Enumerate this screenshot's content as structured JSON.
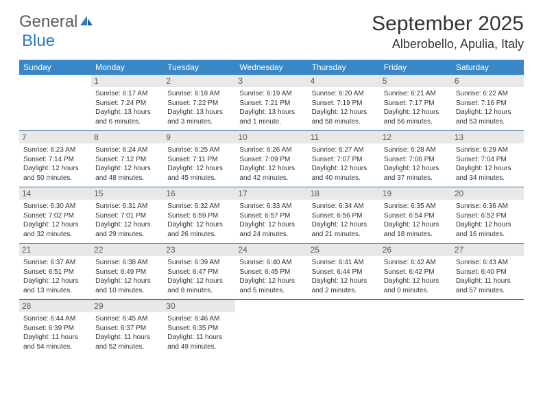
{
  "logo": {
    "text1": "General",
    "text2": "Blue"
  },
  "title": "September 2025",
  "location": "Alberobello, Apulia, Italy",
  "colors": {
    "header_bg": "#3a87c8",
    "header_text": "#ffffff",
    "daynum_bg": "#e8e8e8",
    "daynum_text": "#5a5a5a",
    "row_border": "#2b6fa8",
    "logo_gray": "#5a5a5a",
    "logo_blue": "#2b7bbf"
  },
  "daysOfWeek": [
    "Sunday",
    "Monday",
    "Tuesday",
    "Wednesday",
    "Thursday",
    "Friday",
    "Saturday"
  ],
  "weeks": [
    [
      null,
      {
        "n": "1",
        "sr": "6:17 AM",
        "ss": "7:24 PM",
        "dl": "13 hours and 6 minutes."
      },
      {
        "n": "2",
        "sr": "6:18 AM",
        "ss": "7:22 PM",
        "dl": "13 hours and 3 minutes."
      },
      {
        "n": "3",
        "sr": "6:19 AM",
        "ss": "7:21 PM",
        "dl": "13 hours and 1 minute."
      },
      {
        "n": "4",
        "sr": "6:20 AM",
        "ss": "7:19 PM",
        "dl": "12 hours and 58 minutes."
      },
      {
        "n": "5",
        "sr": "6:21 AM",
        "ss": "7:17 PM",
        "dl": "12 hours and 56 minutes."
      },
      {
        "n": "6",
        "sr": "6:22 AM",
        "ss": "7:16 PM",
        "dl": "12 hours and 53 minutes."
      }
    ],
    [
      {
        "n": "7",
        "sr": "6:23 AM",
        "ss": "7:14 PM",
        "dl": "12 hours and 50 minutes."
      },
      {
        "n": "8",
        "sr": "6:24 AM",
        "ss": "7:12 PM",
        "dl": "12 hours and 48 minutes."
      },
      {
        "n": "9",
        "sr": "6:25 AM",
        "ss": "7:11 PM",
        "dl": "12 hours and 45 minutes."
      },
      {
        "n": "10",
        "sr": "6:26 AM",
        "ss": "7:09 PM",
        "dl": "12 hours and 42 minutes."
      },
      {
        "n": "11",
        "sr": "6:27 AM",
        "ss": "7:07 PM",
        "dl": "12 hours and 40 minutes."
      },
      {
        "n": "12",
        "sr": "6:28 AM",
        "ss": "7:06 PM",
        "dl": "12 hours and 37 minutes."
      },
      {
        "n": "13",
        "sr": "6:29 AM",
        "ss": "7:04 PM",
        "dl": "12 hours and 34 minutes."
      }
    ],
    [
      {
        "n": "14",
        "sr": "6:30 AM",
        "ss": "7:02 PM",
        "dl": "12 hours and 32 minutes."
      },
      {
        "n": "15",
        "sr": "6:31 AM",
        "ss": "7:01 PM",
        "dl": "12 hours and 29 minutes."
      },
      {
        "n": "16",
        "sr": "6:32 AM",
        "ss": "6:59 PM",
        "dl": "12 hours and 26 minutes."
      },
      {
        "n": "17",
        "sr": "6:33 AM",
        "ss": "6:57 PM",
        "dl": "12 hours and 24 minutes."
      },
      {
        "n": "18",
        "sr": "6:34 AM",
        "ss": "6:56 PM",
        "dl": "12 hours and 21 minutes."
      },
      {
        "n": "19",
        "sr": "6:35 AM",
        "ss": "6:54 PM",
        "dl": "12 hours and 18 minutes."
      },
      {
        "n": "20",
        "sr": "6:36 AM",
        "ss": "6:52 PM",
        "dl": "12 hours and 16 minutes."
      }
    ],
    [
      {
        "n": "21",
        "sr": "6:37 AM",
        "ss": "6:51 PM",
        "dl": "12 hours and 13 minutes."
      },
      {
        "n": "22",
        "sr": "6:38 AM",
        "ss": "6:49 PM",
        "dl": "12 hours and 10 minutes."
      },
      {
        "n": "23",
        "sr": "6:39 AM",
        "ss": "6:47 PM",
        "dl": "12 hours and 8 minutes."
      },
      {
        "n": "24",
        "sr": "6:40 AM",
        "ss": "6:45 PM",
        "dl": "12 hours and 5 minutes."
      },
      {
        "n": "25",
        "sr": "6:41 AM",
        "ss": "6:44 PM",
        "dl": "12 hours and 2 minutes."
      },
      {
        "n": "26",
        "sr": "6:42 AM",
        "ss": "6:42 PM",
        "dl": "12 hours and 0 minutes."
      },
      {
        "n": "27",
        "sr": "6:43 AM",
        "ss": "6:40 PM",
        "dl": "11 hours and 57 minutes."
      }
    ],
    [
      {
        "n": "28",
        "sr": "6:44 AM",
        "ss": "6:39 PM",
        "dl": "11 hours and 54 minutes."
      },
      {
        "n": "29",
        "sr": "6:45 AM",
        "ss": "6:37 PM",
        "dl": "11 hours and 52 minutes."
      },
      {
        "n": "30",
        "sr": "6:46 AM",
        "ss": "6:35 PM",
        "dl": "11 hours and 49 minutes."
      },
      null,
      null,
      null,
      null
    ]
  ],
  "labels": {
    "sunrise": "Sunrise:",
    "sunset": "Sunset:",
    "daylight": "Daylight:"
  }
}
